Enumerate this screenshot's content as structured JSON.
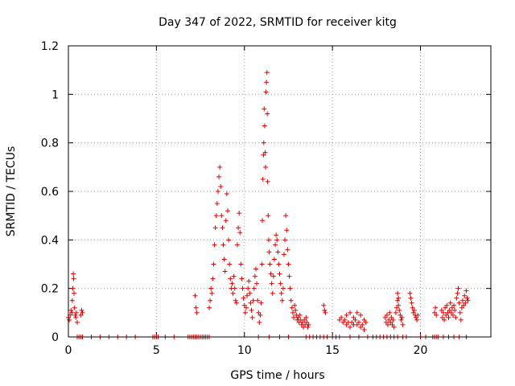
{
  "chart_data": {
    "type": "scatter",
    "title": "Day 347 of 2022, SRMTID for receiver kitg",
    "xlabel": "GPS time / hours",
    "ylabel": "SRMTID / TECUs",
    "xlim": [
      0,
      24
    ],
    "ylim": [
      0,
      1.2
    ],
    "x_ticks": [
      0,
      5,
      10,
      15,
      20
    ],
    "x_tick_labels": [
      "0",
      "5",
      "10",
      "15",
      "20"
    ],
    "y_ticks": [
      0,
      0.2,
      0.4,
      0.6,
      0.8,
      1,
      1.2
    ],
    "y_tick_labels": [
      "0",
      "0.2",
      "0.4",
      "0.6",
      "0.8",
      "1",
      "1.2"
    ],
    "grid": true,
    "marker": "+",
    "series": [
      {
        "name": "SRMTID",
        "color": "#e00000",
        "points": [
          [
            0.0,
            0.08
          ],
          [
            0.05,
            0.07
          ],
          [
            0.1,
            0.09
          ],
          [
            0.15,
            0.11
          ],
          [
            0.2,
            0.1
          ],
          [
            0.22,
            0.15
          ],
          [
            0.25,
            0.2
          ],
          [
            0.28,
            0.26
          ],
          [
            0.3,
            0.24
          ],
          [
            0.32,
            0.18
          ],
          [
            0.35,
            0.12
          ],
          [
            0.38,
            0.09
          ],
          [
            0.42,
            0.08
          ],
          [
            0.45,
            0.1
          ],
          [
            0.5,
            0.06
          ],
          [
            0.7,
            0.09
          ],
          [
            0.75,
            0.11
          ],
          [
            0.8,
            0.1
          ],
          [
            0.5,
            0.0
          ],
          [
            0.6,
            0.0
          ],
          [
            0.7,
            0.0
          ],
          [
            0.8,
            0.0
          ],
          [
            1.3,
            0.0
          ],
          [
            1.8,
            0.0
          ],
          [
            2.3,
            0.0
          ],
          [
            2.8,
            0.0
          ],
          [
            3.3,
            0.0
          ],
          [
            3.8,
            0.0
          ],
          [
            4.8,
            0.0
          ],
          [
            4.9,
            0.0
          ],
          [
            5.0,
            0.0
          ],
          [
            5.1,
            0.0
          ],
          [
            5.5,
            0.0
          ],
          [
            6.0,
            0.0
          ],
          [
            6.8,
            0.0
          ],
          [
            6.9,
            0.0
          ],
          [
            7.0,
            0.0
          ],
          [
            7.1,
            0.0
          ],
          [
            7.2,
            0.0
          ],
          [
            7.3,
            0.0
          ],
          [
            7.4,
            0.0
          ],
          [
            7.5,
            0.0
          ],
          [
            7.6,
            0.0
          ],
          [
            7.7,
            0.0
          ],
          [
            7.8,
            0.0
          ],
          [
            7.9,
            0.0
          ],
          [
            8.0,
            0.0
          ],
          [
            7.2,
            0.17
          ],
          [
            7.25,
            0.12
          ],
          [
            7.3,
            0.1
          ],
          [
            8.0,
            0.12
          ],
          [
            8.05,
            0.15
          ],
          [
            8.1,
            0.2
          ],
          [
            8.15,
            0.18
          ],
          [
            8.2,
            0.24
          ],
          [
            8.25,
            0.3
          ],
          [
            8.3,
            0.38
          ],
          [
            8.35,
            0.45
          ],
          [
            8.4,
            0.5
          ],
          [
            8.45,
            0.55
          ],
          [
            8.5,
            0.6
          ],
          [
            8.55,
            0.66
          ],
          [
            8.6,
            0.7
          ],
          [
            8.65,
            0.62
          ],
          [
            8.7,
            0.5
          ],
          [
            8.75,
            0.45
          ],
          [
            8.8,
            0.38
          ],
          [
            8.85,
            0.32
          ],
          [
            8.9,
            0.27
          ],
          [
            8.95,
            0.48
          ],
          [
            9.0,
            0.59
          ],
          [
            9.05,
            0.52
          ],
          [
            9.1,
            0.4
          ],
          [
            9.15,
            0.3
          ],
          [
            9.2,
            0.24
          ],
          [
            9.25,
            0.2
          ],
          [
            9.3,
            0.22
          ],
          [
            9.35,
            0.18
          ],
          [
            9.4,
            0.25
          ],
          [
            9.45,
            0.2
          ],
          [
            9.5,
            0.15
          ],
          [
            9.55,
            0.14
          ],
          [
            9.6,
            0.38
          ],
          [
            9.65,
            0.45
          ],
          [
            9.7,
            0.51
          ],
          [
            9.75,
            0.43
          ],
          [
            9.8,
            0.3
          ],
          [
            9.85,
            0.24
          ],
          [
            9.9,
            0.2
          ],
          [
            9.95,
            0.16
          ],
          [
            10.0,
            0.13
          ],
          [
            10.05,
            0.1
          ],
          [
            10.1,
            0.12
          ],
          [
            10.15,
            0.17
          ],
          [
            10.2,
            0.2
          ],
          [
            10.25,
            0.23
          ],
          [
            10.3,
            0.18
          ],
          [
            10.35,
            0.14
          ],
          [
            10.4,
            0.11
          ],
          [
            10.45,
            0.08
          ],
          [
            10.5,
            0.15
          ],
          [
            10.55,
            0.2
          ],
          [
            10.6,
            0.25
          ],
          [
            10.65,
            0.28
          ],
          [
            10.7,
            0.22
          ],
          [
            10.75,
            0.15
          ],
          [
            10.8,
            0.1
          ],
          [
            10.85,
            0.06
          ],
          [
            10.9,
            0.09
          ],
          [
            10.95,
            0.14
          ],
          [
            11.0,
            0.3
          ],
          [
            11.02,
            0.48
          ],
          [
            11.05,
            0.65
          ],
          [
            11.08,
            0.75
          ],
          [
            11.1,
            0.8
          ],
          [
            11.12,
            0.94
          ],
          [
            11.15,
            0.87
          ],
          [
            11.18,
            0.76
          ],
          [
            11.2,
            0.7
          ],
          [
            11.22,
            1.01
          ],
          [
            11.25,
            1.05
          ],
          [
            11.28,
            1.09
          ],
          [
            11.3,
            0.92
          ],
          [
            11.32,
            0.64
          ],
          [
            11.35,
            0.5
          ],
          [
            11.38,
            0.4
          ],
          [
            11.4,
            0.35
          ],
          [
            11.45,
            0.3
          ],
          [
            11.5,
            0.26
          ],
          [
            11.55,
            0.22
          ],
          [
            11.6,
            0.18
          ],
          [
            11.65,
            0.25
          ],
          [
            11.7,
            0.32
          ],
          [
            11.75,
            0.38
          ],
          [
            11.8,
            0.42
          ],
          [
            11.85,
            0.4
          ],
          [
            11.9,
            0.35
          ],
          [
            11.95,
            0.3
          ],
          [
            12.0,
            0.26
          ],
          [
            12.05,
            0.22
          ],
          [
            12.1,
            0.18
          ],
          [
            12.15,
            0.15
          ],
          [
            12.2,
            0.2
          ],
          [
            12.25,
            0.34
          ],
          [
            12.3,
            0.4
          ],
          [
            12.35,
            0.5
          ],
          [
            12.4,
            0.44
          ],
          [
            12.45,
            0.36
          ],
          [
            12.5,
            0.3
          ],
          [
            12.55,
            0.25
          ],
          [
            12.6,
            0.2
          ],
          [
            12.65,
            0.15
          ],
          [
            12.7,
            0.12
          ],
          [
            12.75,
            0.1
          ],
          [
            12.8,
            0.08
          ],
          [
            12.85,
            0.13
          ],
          [
            12.9,
            0.11
          ],
          [
            12.95,
            0.09
          ],
          [
            13.0,
            0.07
          ],
          [
            13.05,
            0.08
          ],
          [
            13.1,
            0.06
          ],
          [
            13.15,
            0.09
          ],
          [
            13.2,
            0.07
          ],
          [
            13.25,
            0.05
          ],
          [
            13.3,
            0.06
          ],
          [
            13.35,
            0.04
          ],
          [
            13.4,
            0.07
          ],
          [
            13.45,
            0.05
          ],
          [
            13.5,
            0.08
          ],
          [
            13.55,
            0.06
          ],
          [
            13.6,
            0.04
          ],
          [
            13.65,
            0.05
          ],
          [
            10.8,
            0.0
          ],
          [
            11.4,
            0.0
          ],
          [
            12.0,
            0.0
          ],
          [
            12.5,
            0.0
          ],
          [
            13.5,
            0.0
          ],
          [
            13.7,
            0.0
          ],
          [
            13.9,
            0.0
          ],
          [
            14.1,
            0.0
          ],
          [
            14.3,
            0.0
          ],
          [
            14.5,
            0.0
          ],
          [
            14.7,
            0.0
          ],
          [
            15.0,
            0.0
          ],
          [
            15.2,
            0.0
          ],
          [
            15.4,
            0.0
          ],
          [
            14.5,
            0.13
          ],
          [
            14.55,
            0.11
          ],
          [
            14.6,
            0.1
          ],
          [
            15.4,
            0.07
          ],
          [
            15.5,
            0.08
          ],
          [
            15.6,
            0.06
          ],
          [
            15.7,
            0.07
          ],
          [
            15.8,
            0.05
          ],
          [
            15.9,
            0.06
          ],
          [
            16.0,
            0.04
          ],
          [
            16.1,
            0.06
          ],
          [
            16.2,
            0.05
          ],
          [
            16.3,
            0.07
          ],
          [
            16.4,
            0.05
          ],
          [
            16.5,
            0.06
          ],
          [
            16.6,
            0.04
          ],
          [
            16.7,
            0.05
          ],
          [
            16.8,
            0.07
          ],
          [
            16.9,
            0.06
          ],
          [
            15.8,
            0.09
          ],
          [
            16.0,
            0.1
          ],
          [
            16.2,
            0.08
          ],
          [
            16.4,
            0.1
          ],
          [
            16.6,
            0.09
          ],
          [
            16.8,
            0.03
          ],
          [
            16.0,
            0.0
          ],
          [
            16.5,
            0.0
          ],
          [
            17.0,
            0.0
          ],
          [
            17.3,
            0.0
          ],
          [
            17.5,
            0.0
          ],
          [
            17.7,
            0.0
          ],
          [
            17.9,
            0.0
          ],
          [
            18.1,
            0.0
          ],
          [
            18.3,
            0.0
          ],
          [
            18.5,
            0.0
          ],
          [
            18.7,
            0.0
          ],
          [
            19.0,
            0.0
          ],
          [
            19.2,
            0.0
          ],
          [
            18.0,
            0.08
          ],
          [
            18.05,
            0.06
          ],
          [
            18.1,
            0.09
          ],
          [
            18.15,
            0.05
          ],
          [
            18.2,
            0.07
          ],
          [
            18.25,
            0.1
          ],
          [
            18.3,
            0.06
          ],
          [
            18.35,
            0.08
          ],
          [
            18.4,
            0.05
          ],
          [
            18.45,
            0.07
          ],
          [
            18.5,
            0.04
          ],
          [
            18.6,
            0.1
          ],
          [
            18.65,
            0.12
          ],
          [
            18.7,
            0.15
          ],
          [
            18.75,
            0.13
          ],
          [
            18.8,
            0.11
          ],
          [
            18.85,
            0.09
          ],
          [
            18.9,
            0.07
          ],
          [
            18.95,
            0.08
          ],
          [
            19.0,
            0.05
          ],
          [
            18.7,
            0.18
          ],
          [
            18.75,
            0.16
          ],
          [
            19.4,
            0.18
          ],
          [
            19.45,
            0.16
          ],
          [
            19.5,
            0.14
          ],
          [
            19.55,
            0.12
          ],
          [
            19.6,
            0.1
          ],
          [
            19.65,
            0.11
          ],
          [
            19.7,
            0.09
          ],
          [
            19.75,
            0.08
          ],
          [
            19.8,
            0.07
          ],
          [
            19.85,
            0.09
          ],
          [
            20.0,
            0.0
          ],
          [
            20.3,
            0.0
          ],
          [
            20.7,
            0.0
          ],
          [
            20.8,
            0.0
          ],
          [
            20.9,
            0.0
          ],
          [
            21.0,
            0.0
          ],
          [
            21.3,
            0.0
          ],
          [
            21.6,
            0.0
          ],
          [
            21.9,
            0.0
          ],
          [
            22.2,
            0.0
          ],
          [
            22.6,
            0.0
          ],
          [
            20.8,
            0.1
          ],
          [
            20.85,
            0.12
          ],
          [
            20.9,
            0.09
          ],
          [
            21.2,
            0.11
          ],
          [
            21.25,
            0.08
          ],
          [
            21.3,
            0.1
          ],
          [
            21.35,
            0.07
          ],
          [
            21.4,
            0.12
          ],
          [
            21.45,
            0.09
          ],
          [
            21.5,
            0.13
          ],
          [
            21.55,
            0.1
          ],
          [
            21.6,
            0.08
          ],
          [
            21.65,
            0.11
          ],
          [
            21.7,
            0.14
          ],
          [
            21.75,
            0.1
          ],
          [
            21.8,
            0.12
          ],
          [
            21.85,
            0.09
          ],
          [
            21.9,
            0.13
          ],
          [
            21.95,
            0.11
          ],
          [
            22.0,
            0.08
          ],
          [
            22.05,
            0.16
          ],
          [
            22.1,
            0.18
          ],
          [
            22.15,
            0.2
          ],
          [
            22.2,
            0.14
          ],
          [
            22.25,
            0.1
          ],
          [
            22.3,
            0.07
          ],
          [
            22.35,
            0.12
          ],
          [
            22.4,
            0.15
          ],
          [
            22.45,
            0.13
          ],
          [
            22.5,
            0.17
          ],
          [
            22.55,
            0.14
          ],
          [
            22.6,
            0.19
          ],
          [
            22.65,
            0.16
          ],
          [
            22.7,
            0.15
          ]
        ]
      }
    ]
  }
}
